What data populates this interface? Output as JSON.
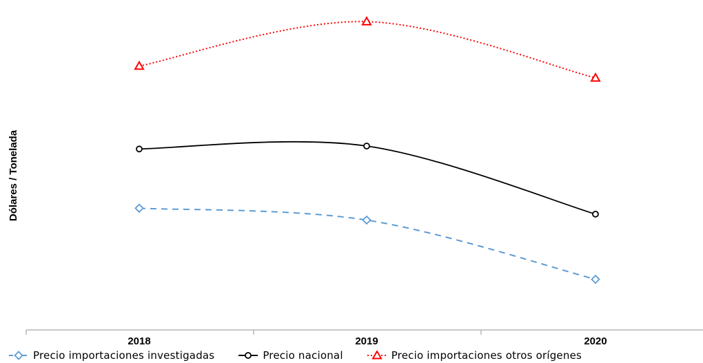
{
  "chart_data": {
    "type": "line",
    "title": "",
    "xlabel": "",
    "ylabel": "Dólares / Tonelada",
    "categories": [
      "2018",
      "2019",
      "2020"
    ],
    "ylim": [
      0,
      100
    ],
    "grid": false,
    "legend_position": "bottom",
    "series": [
      {
        "name": "Precio importaciones investigadas",
        "values": [
          39,
          35,
          15
        ],
        "color": "#5b9bd5",
        "style": "dashed",
        "marker": "diamond"
      },
      {
        "name": "Precio nacional",
        "values": [
          59,
          60,
          37
        ],
        "color": "#000000",
        "style": "solid",
        "marker": "circle"
      },
      {
        "name": "Precio importaciones otros orígenes",
        "values": [
          87,
          102,
          83
        ],
        "color": "#ff0000",
        "style": "dotted",
        "marker": "triangle"
      }
    ]
  }
}
